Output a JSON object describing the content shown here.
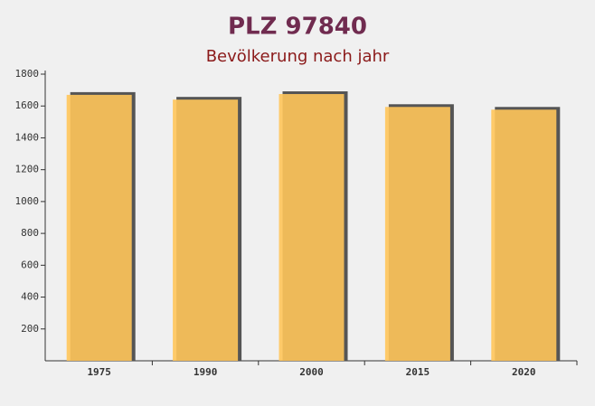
{
  "chart_data": {
    "type": "bar",
    "title": "PLZ 97840",
    "subtitle": "Bevölkerung nach jahr",
    "categories": [
      "1975",
      "1990",
      "2000",
      "2015",
      "2020"
    ],
    "values": [
      1670,
      1640,
      1675,
      1594,
      1577
    ],
    "color": "#ffc55a",
    "ylim": [
      0,
      1800
    ],
    "yticks": [
      200,
      400,
      600,
      800,
      1000,
      1200,
      1400,
      1600,
      1800
    ]
  }
}
